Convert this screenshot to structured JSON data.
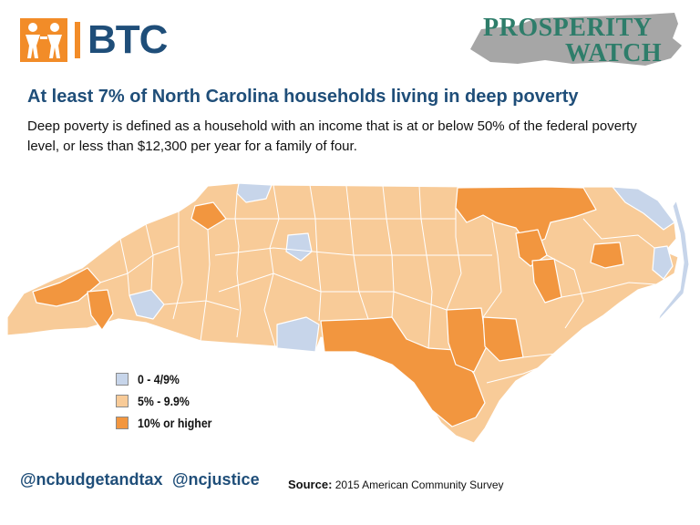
{
  "header": {
    "btc_logo_text": "BTC",
    "pw_logo_line1": "PROSPERITY",
    "pw_logo_line2": "WATCH"
  },
  "headline": "At least 7% of North Carolina households living in deep poverty",
  "subtitle": "Deep poverty is defined as a household with an income that is at or below 50% of the federal poverty level, or less than $12,300 per year for a family of four.",
  "legend": [
    {
      "label": "0 - 4/9%",
      "color": "#c7d5ea"
    },
    {
      "label": "5% - 9.9%",
      "color": "#f8cb98"
    },
    {
      "label": "10% or higher",
      "color": "#f2963f"
    }
  ],
  "footer": {
    "handle_1": "@ncbudgetandtax",
    "handle_2": "@ncjustice",
    "source_label": "Source:",
    "source_text": " 2015 American Community Survey"
  },
  "colors": {
    "brand_blue": "#1f4e79",
    "brand_orange": "#f28c28",
    "pw_green": "#2e7d6a",
    "pw_grey": "#a6a6a6",
    "county_border": "#ffffff",
    "low": "#c7d5ea",
    "mid": "#f8cb98",
    "high": "#f2963f"
  }
}
